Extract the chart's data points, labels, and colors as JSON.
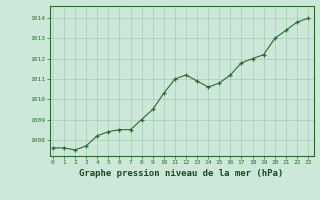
{
  "x": [
    0,
    1,
    2,
    3,
    4,
    5,
    6,
    7,
    8,
    9,
    10,
    11,
    12,
    13,
    14,
    15,
    16,
    17,
    18,
    19,
    20,
    21,
    22,
    23
  ],
  "y": [
    1007.6,
    1007.6,
    1007.5,
    1007.7,
    1008.2,
    1008.4,
    1008.5,
    1008.5,
    1009.0,
    1009.5,
    1010.3,
    1011.0,
    1011.2,
    1010.9,
    1010.6,
    1010.8,
    1011.2,
    1011.8,
    1012.0,
    1012.2,
    1013.0,
    1013.4,
    1013.8,
    1014.0
  ],
  "line_color": "#2d6a2d",
  "marker": "+",
  "marker_color": "#2d6a2d",
  "bg_color": "#cce8d8",
  "grid_color": "#aacaba",
  "xlabel": "Graphe pression niveau de la mer (hPa)",
  "xlabel_color": "#1a4a1a",
  "ylabel_ticks": [
    1008,
    1009,
    1010,
    1011,
    1012,
    1013,
    1014
  ],
  "xlim": [
    -0.3,
    23.5
  ],
  "ylim": [
    1007.2,
    1014.6
  ],
  "tick_color": "#2d6a2d",
  "spine_color": "#2d6a2d",
  "xtick_labels": [
    "0",
    "1",
    "2",
    "3",
    "4",
    "5",
    "6",
    "7",
    "8",
    "9",
    "10",
    "11",
    "12",
    "13",
    "14",
    "15",
    "16",
    "17",
    "18",
    "19",
    "20",
    "21",
    "22",
    "23"
  ]
}
